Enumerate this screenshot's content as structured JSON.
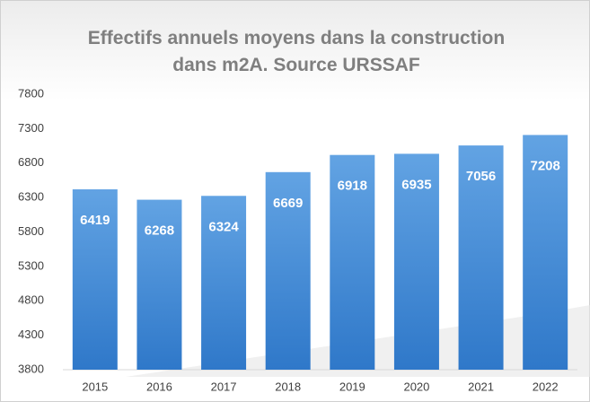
{
  "chart_data": {
    "type": "bar",
    "title": "Effectifs annuels moyens dans la construction dans m2A. Source URSSAF",
    "categories": [
      "2015",
      "2016",
      "2017",
      "2018",
      "2019",
      "2020",
      "2021",
      "2022"
    ],
    "values": [
      6419,
      6268,
      6324,
      6669,
      6918,
      6935,
      7056,
      7208
    ],
    "color": "#4a8fd6",
    "ylim": [
      3800,
      7800
    ],
    "yticks": [
      3800,
      4300,
      4800,
      5300,
      5800,
      6300,
      6800,
      7300,
      7800
    ],
    "grid": false
  }
}
